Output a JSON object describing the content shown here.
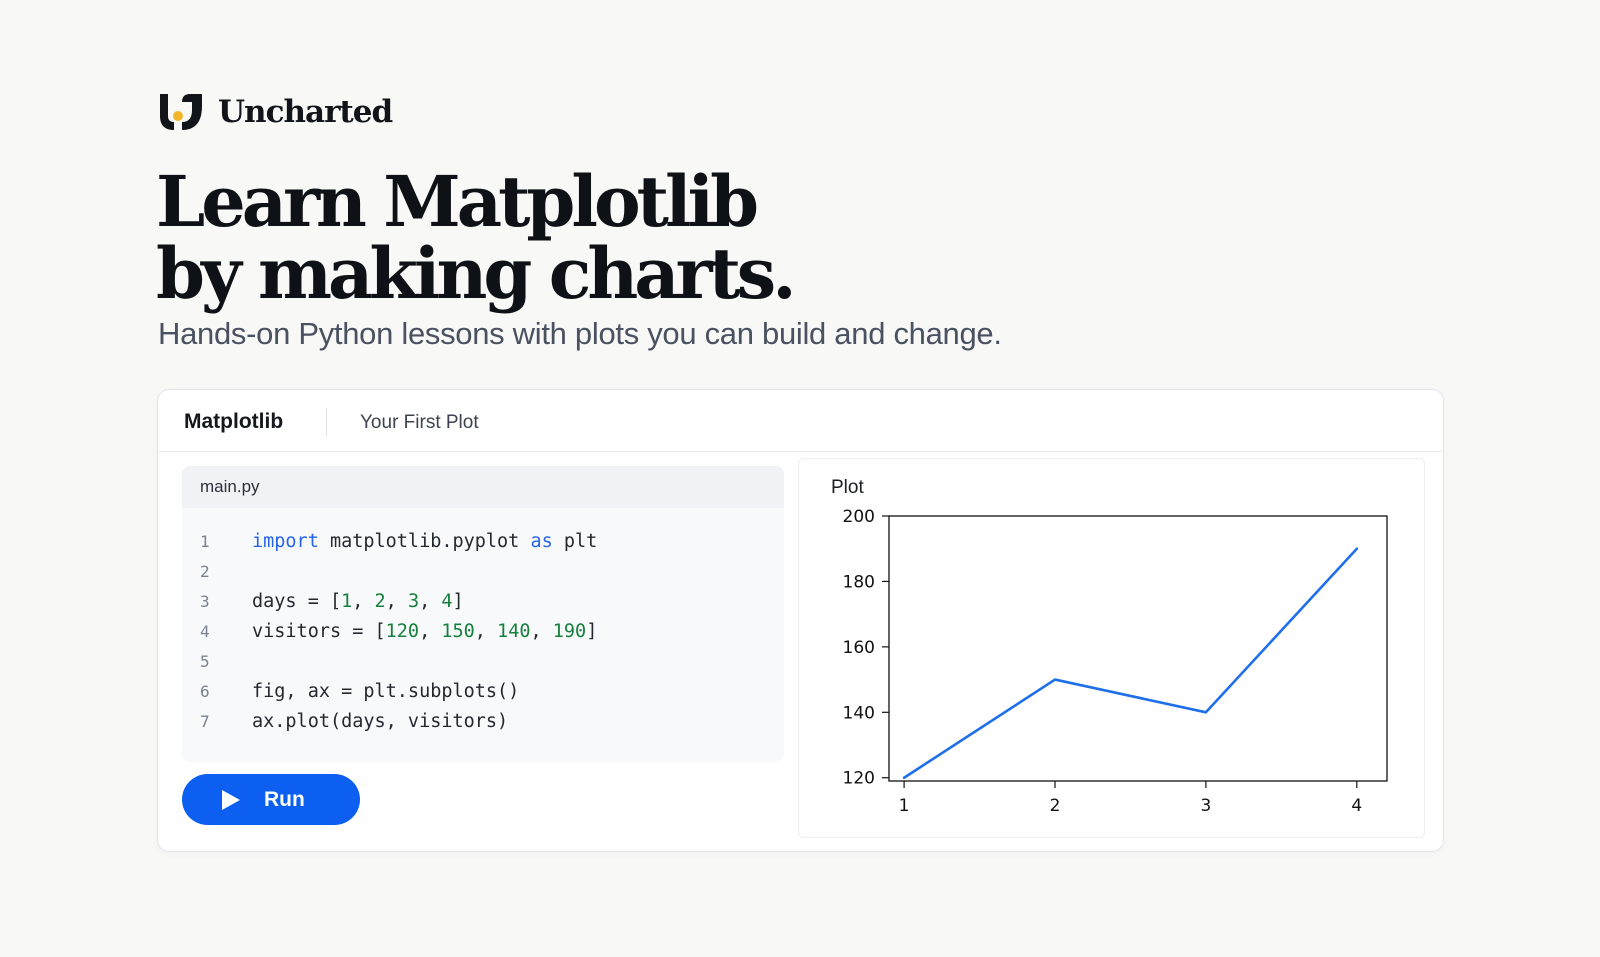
{
  "brand": {
    "name": "Uncharted",
    "logo_icon": "uncharted-logo-icon",
    "accent_color": "#f3b62a"
  },
  "hero": {
    "headline_line1": "Learn Matplotlib",
    "headline_line2": "by making charts.",
    "subheadline": "Hands-on Python lessons with plots you can build and change."
  },
  "card": {
    "title": "Matplotlib",
    "lesson": "Your First Plot",
    "editor": {
      "filename": "main.py",
      "lines": [
        {
          "n": "1",
          "tokens": [
            [
              "import",
              "kw"
            ],
            [
              " matplotlib.pyplot ",
              ""
            ],
            [
              "as",
              "kw"
            ],
            [
              " plt",
              ""
            ]
          ]
        },
        {
          "n": "2",
          "tokens": []
        },
        {
          "n": "3",
          "tokens": [
            [
              "days = [",
              ""
            ],
            [
              "1",
              "num"
            ],
            [
              ", ",
              ""
            ],
            [
              "2",
              "num"
            ],
            [
              ", ",
              ""
            ],
            [
              "3",
              "num"
            ],
            [
              ", ",
              ""
            ],
            [
              "4",
              "num"
            ],
            [
              "]",
              ""
            ]
          ]
        },
        {
          "n": "4",
          "tokens": [
            [
              "visitors = [",
              ""
            ],
            [
              "120",
              "num"
            ],
            [
              ", ",
              ""
            ],
            [
              "150",
              "num"
            ],
            [
              ", ",
              ""
            ],
            [
              "140",
              "num"
            ],
            [
              ", ",
              ""
            ],
            [
              "190",
              "num"
            ],
            [
              "]",
              ""
            ]
          ]
        },
        {
          "n": "5",
          "tokens": []
        },
        {
          "n": "6",
          "tokens": [
            [
              "fig, ax = plt.subplots()",
              ""
            ]
          ]
        },
        {
          "n": "7",
          "tokens": [
            [
              "ax.plot(days, visitors)",
              ""
            ]
          ]
        }
      ]
    },
    "run_label": "Run",
    "run_icon": "play-icon",
    "run_color": "#0c5ff0",
    "plot_panel_title": "Plot"
  },
  "chart_data": {
    "type": "line",
    "x": [
      1,
      2,
      3,
      4
    ],
    "series": [
      {
        "values": [
          120,
          150,
          140,
          190
        ],
        "color": "#1f6feb"
      }
    ],
    "xticks": [
      1,
      2,
      3,
      4
    ],
    "yticks": [
      120,
      140,
      160,
      180,
      200
    ],
    "xlim": [
      0.9,
      4.2
    ],
    "ylim": [
      119,
      200
    ],
    "grid": false
  }
}
